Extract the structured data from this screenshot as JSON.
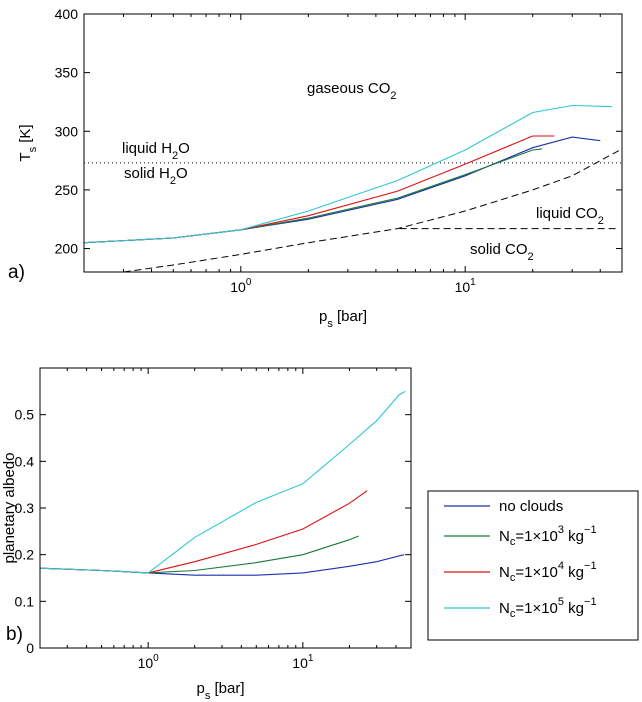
{
  "chart_data": [
    {
      "panel_label": "a)",
      "type": "line",
      "x_scale": "log",
      "xlim": [
        0.2,
        50
      ],
      "ylim": [
        180,
        400
      ],
      "xlabel": {
        "main": "p",
        "sub": "s",
        "unit": " [bar]"
      },
      "ylabel": {
        "main": "T",
        "sub": "s",
        "unit": " [K]"
      },
      "yticks": [
        "200",
        "250",
        "300",
        "350",
        "400"
      ],
      "xticks": [
        {
          "base": "10",
          "exp": "0"
        },
        {
          "base": "10",
          "exp": "1"
        }
      ],
      "annotations": {
        "gaseous": {
          "main": "gaseous CO",
          "sub": "2"
        },
        "liquid_h2o": {
          "main": "liquid H",
          "sub": "2",
          "tail": "O"
        },
        "solid_h2o": {
          "main": "solid H",
          "sub": "2",
          "tail": "O"
        },
        "liquid_co2": {
          "main": "liquid CO",
          "sub": "2"
        },
        "solid_co2": {
          "main": "solid CO",
          "sub": "2"
        }
      },
      "reference_lines": {
        "h2o_freezing": {
          "style": "dotted",
          "y": 273
        },
        "co2_saturation": {
          "style": "dashed",
          "x": [
            0.3,
            0.5,
            1,
            2,
            5,
            10,
            20,
            30,
            50
          ],
          "y": [
            180,
            186,
            195,
            205,
            217,
            232,
            250,
            262,
            285
          ]
        },
        "co2_triple_line": {
          "style": "dashed",
          "x": [
            5.1,
            48
          ],
          "y": [
            217,
            217
          ]
        }
      },
      "series": [
        {
          "color": "#1f2fae",
          "x": [
            0.2,
            0.5,
            1,
            2,
            5,
            10,
            20,
            30,
            40
          ],
          "y": [
            205,
            209,
            216,
            225,
            242,
            262,
            286,
            295,
            292
          ]
        },
        {
          "color": "#1b7a3a",
          "x": [
            0.2,
            0.5,
            1,
            2,
            5,
            10,
            20,
            22
          ],
          "y": [
            205,
            209,
            216,
            226,
            243,
            263,
            284,
            285
          ]
        },
        {
          "color": "#e01010",
          "x": [
            0.2,
            0.5,
            1,
            2,
            5,
            10,
            20,
            25
          ],
          "y": [
            205,
            209,
            216,
            228,
            249,
            272,
            296,
            296
          ]
        },
        {
          "color": "#2ec8d2",
          "x": [
            0.2,
            0.5,
            1,
            2,
            5,
            10,
            20,
            30,
            45
          ],
          "y": [
            205,
            209,
            216,
            232,
            258,
            284,
            316,
            322,
            321
          ]
        }
      ]
    },
    {
      "panel_label": "b)",
      "type": "line",
      "x_scale": "log",
      "xlim": [
        0.2,
        50
      ],
      "ylim": [
        0,
        0.6
      ],
      "xlabel": {
        "main": "p",
        "sub": "s",
        "unit": " [bar]"
      },
      "ylabel": "planetary albedo",
      "yticks": [
        "0",
        "0.1",
        "0.2",
        "0.3",
        "0.4",
        "0.5"
      ],
      "xticks": [
        {
          "base": "10",
          "exp": "0"
        },
        {
          "base": "10",
          "exp": "1"
        }
      ],
      "legend_position": "outside-right",
      "series": [
        {
          "name": "no clouds",
          "color": "#1f2fae",
          "x": [
            0.2,
            0.5,
            1,
            2,
            5,
            10,
            20,
            30,
            45
          ],
          "y": [
            0.171,
            0.166,
            0.161,
            0.156,
            0.156,
            0.161,
            0.175,
            0.185,
            0.2
          ]
        },
        {
          "name_parts": {
            "main": "N",
            "sub": "c",
            "value": "=1×10",
            "exp": "3",
            "unit": " kg",
            "unit_exp": "−1"
          },
          "color": "#1b7a3a",
          "x": [
            0.2,
            0.5,
            1,
            2,
            5,
            10,
            20,
            23
          ],
          "y": [
            0.171,
            0.166,
            0.161,
            0.166,
            0.183,
            0.2,
            0.232,
            0.24
          ]
        },
        {
          "name_parts": {
            "main": "N",
            "sub": "c",
            "value": "=1×10",
            "exp": "4",
            "unit": " kg",
            "unit_exp": "−1"
          },
          "color": "#e01010",
          "x": [
            0.2,
            0.5,
            1,
            2,
            5,
            10,
            20,
            26
          ],
          "y": [
            0.171,
            0.166,
            0.161,
            0.185,
            0.222,
            0.255,
            0.31,
            0.337
          ]
        },
        {
          "name_parts": {
            "main": "N",
            "sub": "c",
            "value": "=1×10",
            "exp": "5",
            "unit": " kg",
            "unit_exp": "−1"
          },
          "color": "#2ec8d2",
          "x": [
            0.2,
            0.5,
            1,
            2,
            5,
            10,
            20,
            30,
            42,
            46
          ],
          "y": [
            0.171,
            0.166,
            0.161,
            0.237,
            0.312,
            0.352,
            0.436,
            0.487,
            0.543,
            0.55
          ]
        }
      ]
    }
  ]
}
